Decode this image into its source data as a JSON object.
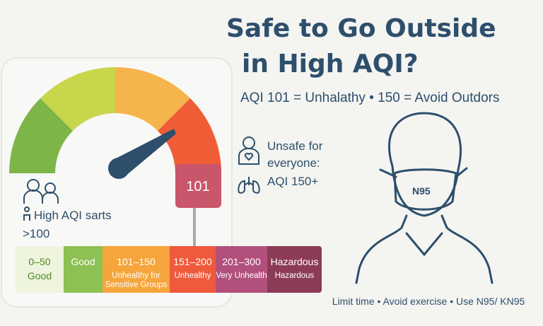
{
  "title_lines": [
    "Safe to Go Outside",
    "in High AQI?"
  ],
  "subtitle": "AQI 101 = Unhalathy • 150 = Avoid Outdors",
  "gauge": {
    "value_label": "101"
  },
  "note_left": {
    "lines": [
      "High AQI sarts",
      ">100"
    ]
  },
  "note_right": {
    "lines": [
      "Unsafe for",
      "everyone:",
      "AQI 150+"
    ]
  },
  "mask_label": "N95",
  "scale": [
    {
      "top": "0–50",
      "bottom": "Good"
    },
    {
      "top": "Good"
    },
    {
      "top": "101–150",
      "bottom": "Unhealthy for Sensitive Groups"
    },
    {
      "top": "151–200",
      "bottom": "Unhealthy"
    },
    {
      "top": "201–300",
      "bottom": "Very Unhealth"
    },
    {
      "top": "Hazardous",
      "bottom": "Hazardous"
    }
  ],
  "footer": "Limit time  •  Avoid exercise  •  Use N95/ KN95"
}
